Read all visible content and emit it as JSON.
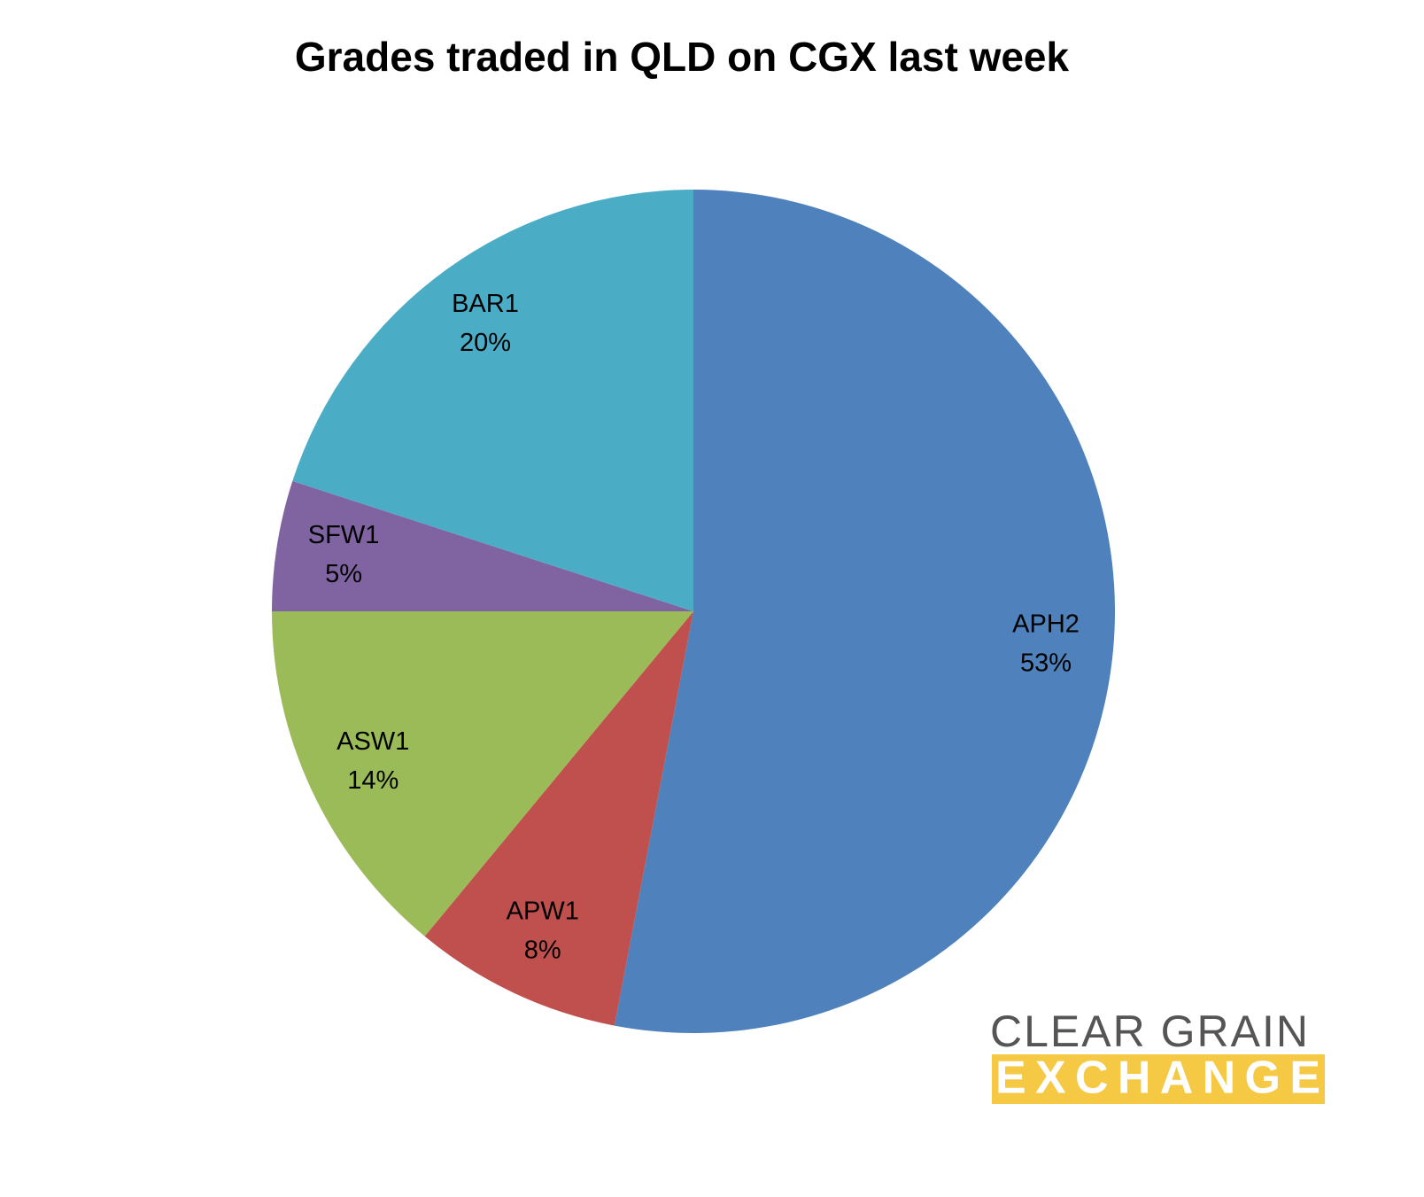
{
  "chart_data": {
    "type": "pie",
    "title": "Grades traded in QLD on CGX last week",
    "categories": [
      "APH2",
      "APW1",
      "ASW1",
      "SFW1",
      "BAR1"
    ],
    "values": [
      53,
      8,
      14,
      5,
      20
    ],
    "value_labels": [
      "53%",
      "8%",
      "14%",
      "5%",
      "20%"
    ],
    "colors": [
      "#4f81bd",
      "#c0504d",
      "#9bbb59",
      "#8064a2",
      "#4bacc6"
    ]
  },
  "logo": {
    "line1": "CLEAR GRAIN",
    "line2": "EXCHANGE"
  }
}
